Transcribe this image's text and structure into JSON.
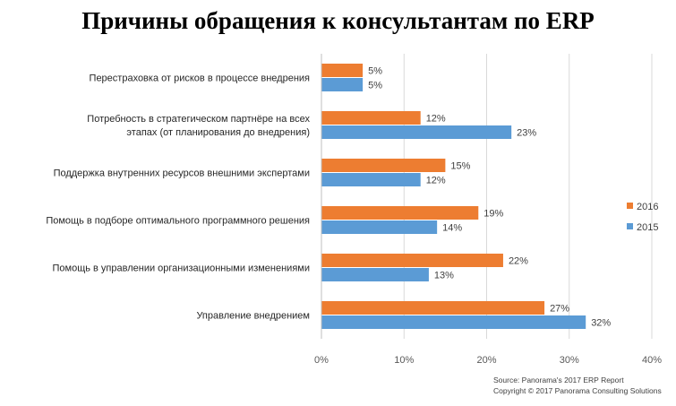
{
  "chart_data": {
    "type": "bar",
    "orientation": "horizontal",
    "title": "Причины обращения к консультантам по ERP",
    "categories": [
      [
        "Перестраховка от рисков в процессе внедрения"
      ],
      [
        "Потребность в стратегическом партнёре на всех",
        "этапах (от планирования до внедрения)"
      ],
      [
        "Поддержка внутренних ресурсов внешними экспертами"
      ],
      [
        "Помощь в подборе оптимального программного решения"
      ],
      [
        "Помощь в управлении организационными изменениями"
      ],
      [
        "Управление внедрением"
      ]
    ],
    "series": [
      {
        "name": "2016",
        "color": "#ED7D31",
        "values": [
          5,
          12,
          15,
          19,
          22,
          27
        ]
      },
      {
        "name": "2015",
        "color": "#5B9BD5",
        "values": [
          5,
          23,
          12,
          14,
          13,
          32
        ]
      }
    ],
    "xlim": [
      0,
      40
    ],
    "xticks": [
      0,
      10,
      20,
      30,
      40
    ],
    "tick_format": "%",
    "grid": true,
    "legend": "right",
    "source": "Source: Panorama's 2017 ERP Report",
    "copyright": "Copyright © 2017 Panorama Consulting Solutions"
  }
}
